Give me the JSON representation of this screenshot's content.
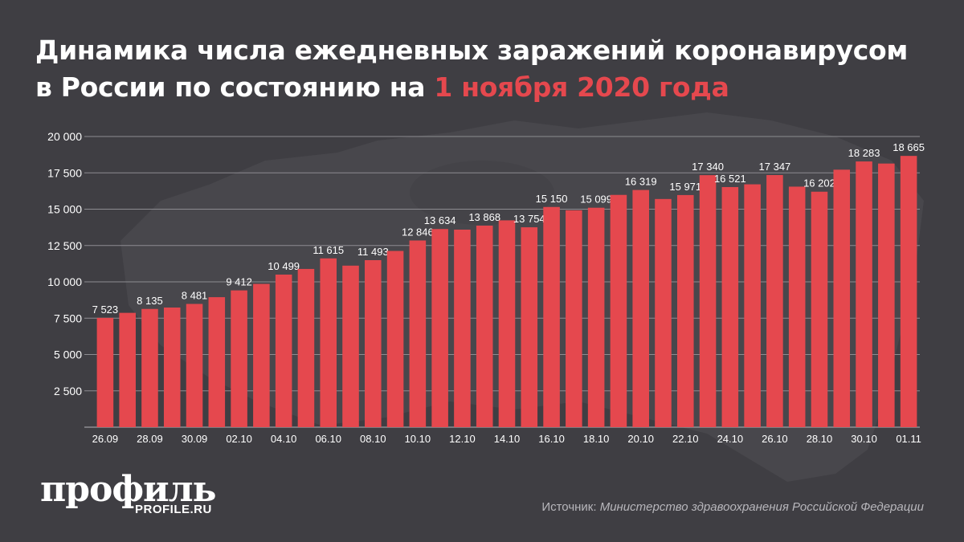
{
  "title": {
    "line1": "Динамика числа ежедневных заражений коронавирусом",
    "line2_prefix": "в России по состоянию на ",
    "line2_accent": "1 ноября 2020 года"
  },
  "colors": {
    "background": "#3f3e43",
    "bar": "#e5484e",
    "accent": "#e5484e",
    "text": "#ffffff",
    "grid": "#8d8c91"
  },
  "brand": {
    "name": "профиль",
    "url": "PROFILE.RU"
  },
  "source": {
    "label": "Источник: ",
    "value": "Министерство здравоохранения Российской Федерации"
  },
  "chart_data": {
    "type": "bar",
    "title": "",
    "xlabel": "",
    "ylabel": "",
    "ylim": [
      0,
      20000
    ],
    "yticks": [
      0,
      2500,
      5000,
      7500,
      10000,
      12500,
      15000,
      17500,
      20000
    ],
    "ytick_labels": [
      "",
      "2 500",
      "5 000",
      "7 500",
      "10 000",
      "12 500",
      "15 000",
      "17 500",
      "20 000"
    ],
    "grid": true,
    "categories": [
      "26.09",
      "27.09",
      "28.09",
      "29.09",
      "30.09",
      "01.10",
      "02.10",
      "03.10",
      "04.10",
      "05.10",
      "06.10",
      "07.10",
      "08.10",
      "09.10",
      "10.10",
      "11.10",
      "12.10",
      "13.10",
      "14.10",
      "15.10",
      "16.10",
      "17.10",
      "18.10",
      "19.10",
      "20.10",
      "21.10",
      "22.10",
      "23.10",
      "24.10",
      "25.10",
      "26.10",
      "27.10",
      "28.10",
      "29.10",
      "30.10",
      "31.10",
      "01.11"
    ],
    "xtick_labels": [
      "26.09",
      "",
      "28.09",
      "",
      "30.09",
      "",
      "02.10",
      "",
      "04.10",
      "",
      "06.10",
      "",
      "08.10",
      "",
      "10.10",
      "",
      "12.10",
      "",
      "14.10",
      "",
      "16.10",
      "",
      "18.10",
      "",
      "20.10",
      "",
      "22.10",
      "",
      "24.10",
      "",
      "26.10",
      "",
      "28.10",
      "",
      "30.10",
      "",
      "01.11"
    ],
    "values": [
      7523,
      7867,
      8135,
      8232,
      8481,
      8945,
      9412,
      9859,
      10499,
      10888,
      11615,
      11115,
      11493,
      12126,
      12846,
      13634,
      13592,
      13868,
      14231,
      13754,
      15150,
      14922,
      15099,
      15982,
      16319,
      15700,
      15971,
      17340,
      16521,
      16710,
      17347,
      16550,
      16202,
      17717,
      18283,
      18140,
      18665
    ],
    "data_labels": [
      "7 523",
      "",
      "8 135",
      "",
      "8 481",
      "",
      "9 412",
      "",
      "10 499",
      "",
      "11 615",
      "",
      "11 493",
      "",
      "12 846",
      "13 634",
      "",
      "13 868",
      "",
      "13 754",
      "15 150",
      "",
      "15 099",
      "",
      "16 319",
      "",
      "15 971",
      "17 340",
      "16 521",
      "",
      "17 347",
      "",
      "16 202",
      "",
      "18 283",
      "",
      "18 665"
    ]
  }
}
